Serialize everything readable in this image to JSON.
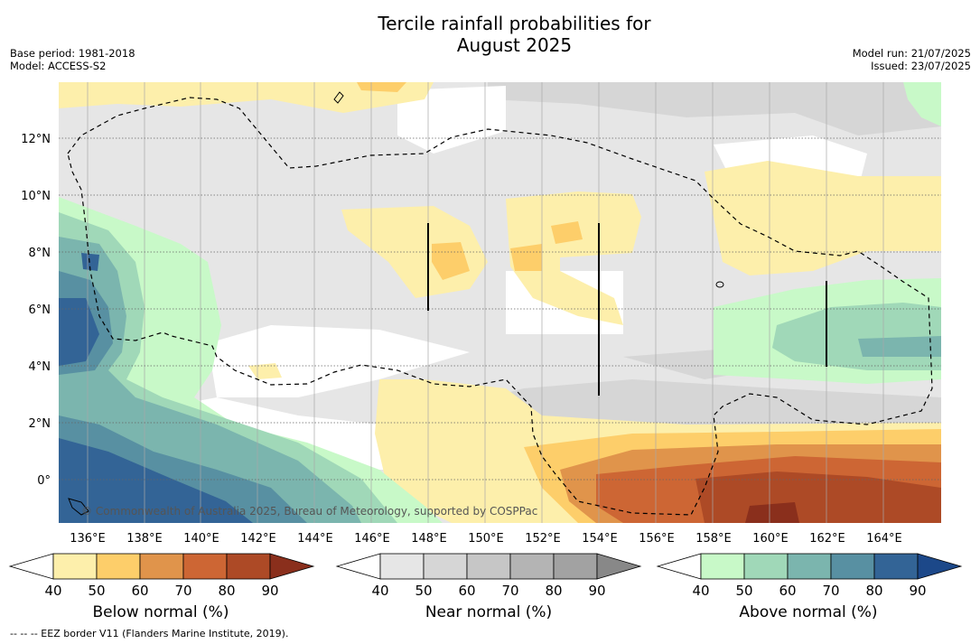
{
  "title_line1": "Tercile rainfall probabilities for",
  "title_line2": "August 2025",
  "base_period": "Base period: 1981-2018",
  "model": "Model: ACCESS-S2",
  "model_run": "Model run: 21/07/2025",
  "issued": "Issued: 23/07/2025",
  "credit": "© Commonwealth of Australia 2025, Bureau of Meteorology, supported by COSPPac",
  "footnote": "--  --  -- EEZ border V11 (Flanders Marine Institute, 2019).",
  "map": {
    "lon_labels": [
      "136°E",
      "138°E",
      "140°E",
      "142°E",
      "144°E",
      "146°E",
      "148°E",
      "150°E",
      "152°E",
      "154°E",
      "156°E",
      "158°E",
      "160°E",
      "162°E",
      "164°E"
    ],
    "lat_labels": [
      "12°N",
      "10°N",
      "8°N",
      "6°N",
      "4°N",
      "2°N",
      "0°"
    ]
  },
  "colorbars": [
    {
      "title": "Below normal (%)",
      "ticks": [
        "40",
        "50",
        "60",
        "70",
        "80",
        "90"
      ],
      "colors": [
        "#ffffff",
        "#fdefab",
        "#fdce6a",
        "#e0944b",
        "#cd6634",
        "#ad4a26",
        "#8a2f1c"
      ]
    },
    {
      "title": "Near normal (%)",
      "ticks": [
        "40",
        "50",
        "60",
        "70",
        "80",
        "90"
      ],
      "colors": [
        "#ffffff",
        "#e6e6e6",
        "#d6d6d6",
        "#c6c6c6",
        "#b4b4b4",
        "#a2a2a2",
        "#888888"
      ]
    },
    {
      "title": "Above normal (%)",
      "ticks": [
        "40",
        "50",
        "60",
        "70",
        "80",
        "90"
      ],
      "colors": [
        "#ffffff",
        "#c8f9c8",
        "#a0d8b8",
        "#7bb5ae",
        "#5890a2",
        "#336496",
        "#1c4889"
      ]
    }
  ]
}
